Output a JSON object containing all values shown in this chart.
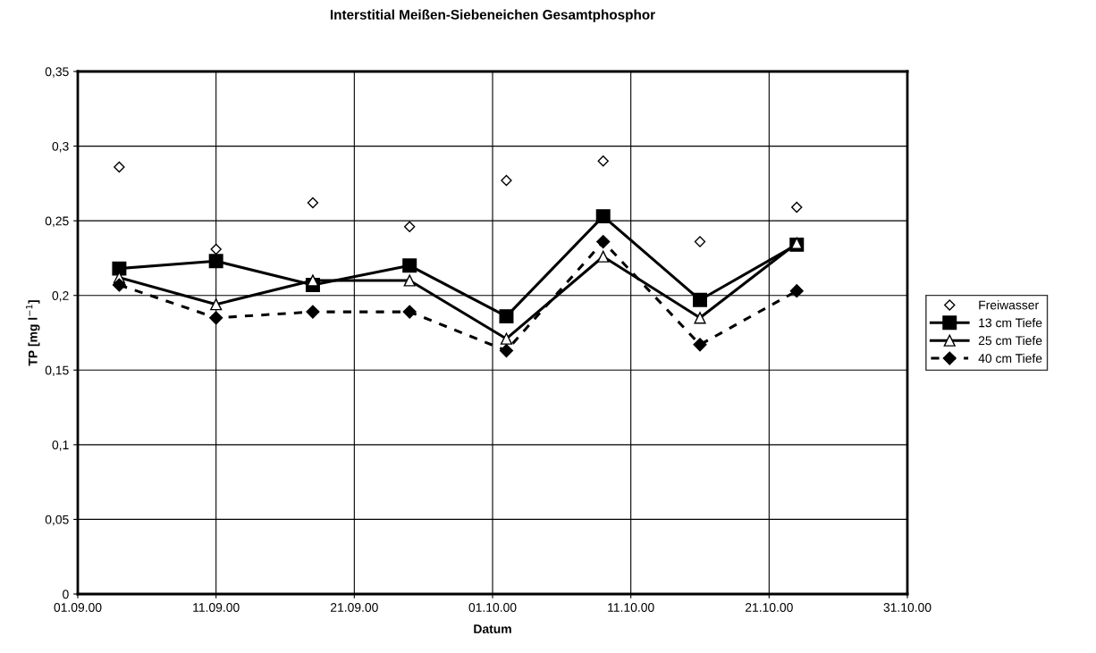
{
  "chart_data": {
    "type": "line",
    "title": "Interstitial Meißen-Siebeneichen Gesamtphosphor",
    "xlabel": "Datum",
    "ylabel": "TP [mg l$^{−1}$]",
    "x": [
      "2000-09-04",
      "2000-09-11",
      "2000-09-18",
      "2000-09-25",
      "2000-10-02",
      "2000-10-09",
      "2000-10-16",
      "2000-10-23"
    ],
    "series": [
      {
        "name": "Freiwasser",
        "type": "scatter",
        "color": "#000000",
        "marker": "diamond",
        "values": [
          0.286,
          0.231,
          0.262,
          0.246,
          0.277,
          0.29,
          0.236,
          0.259
        ]
      },
      {
        "name": "13 cm Tiefe",
        "color": "#000000",
        "marker": "square",
        "line_style": "solid",
        "values": [
          0.218,
          0.223,
          0.207,
          0.22,
          0.186,
          0.253,
          0.197,
          0.234
        ]
      },
      {
        "name": "25 cm Tiefe",
        "color": "#000000",
        "marker": "triangle",
        "line_style": "solid",
        "values": [
          0.212,
          0.194,
          0.21,
          0.21,
          0.171,
          0.226,
          0.185,
          0.235
        ]
      },
      {
        "name": "40 cm Tiefe",
        "color": "#000000",
        "marker": "diamond",
        "line_style": "dashed",
        "values": [
          0.207,
          0.185,
          0.189,
          0.189,
          0.163,
          0.236,
          0.167,
          0.203
        ]
      }
    ],
    "xlim": [
      "2000-09-01",
      "2000-10-31"
    ],
    "xticks": [
      {
        "value": "2000-09-01",
        "label": "01.09.00"
      },
      {
        "value": "2000-09-11",
        "label": "11.09.00"
      },
      {
        "value": "2000-09-21",
        "label": "21.09.00"
      },
      {
        "value": "2000-10-01",
        "label": "01.10.00"
      },
      {
        "value": "2000-10-11",
        "label": "11.10.00"
      },
      {
        "value": "2000-10-21",
        "label": "21.10.00"
      },
      {
        "value": "2000-10-31",
        "label": "31.10.00"
      }
    ],
    "ylim": [
      0,
      0.35
    ],
    "yticks": [
      0,
      {
        "value": 0.05,
        "label": "0,05"
      },
      {
        "value": 0.1,
        "label": "0,1"
      },
      {
        "value": 0.15,
        "label": "0,15"
      },
      {
        "value": 0.2,
        "label": "0,2"
      },
      {
        "value": 0.25,
        "label": "0,25"
      },
      {
        "value": 0.3,
        "label": "0,3"
      },
      {
        "value": 0.35,
        "label": "0,35"
      }
    ],
    "grid": true,
    "legend": "right"
  }
}
